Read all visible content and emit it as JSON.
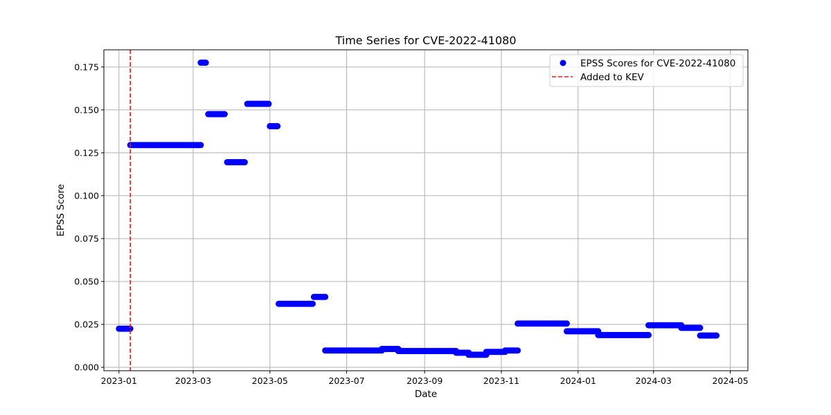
{
  "chart_data": {
    "type": "scatter",
    "title": "Time Series for CVE-2022-41080",
    "xlabel": "Date",
    "ylabel": "EPSS Score",
    "xlim": [
      "2022-12-20",
      "2024-05-15"
    ],
    "ylim": [
      -0.002,
      0.185
    ],
    "grid": true,
    "legend_position": "top-right",
    "x_ticks": [
      "2023-01",
      "2023-03",
      "2023-05",
      "2023-07",
      "2023-09",
      "2023-11",
      "2024-01",
      "2024-03",
      "2024-05"
    ],
    "y_ticks": [
      "0.000",
      "0.025",
      "0.050",
      "0.075",
      "0.100",
      "0.125",
      "0.150",
      "0.175"
    ],
    "series": [
      {
        "name": "EPSS Scores for CVE-2022-41080",
        "color": "#0000ff",
        "marker": "circle",
        "segments": [
          {
            "start": "2023-01-01",
            "end": "2023-01-10",
            "value": 0.0225
          },
          {
            "start": "2023-01-10",
            "end": "2023-03-07",
            "value": 0.1295
          },
          {
            "start": "2023-03-07",
            "end": "2023-03-11",
            "value": 0.1775
          },
          {
            "start": "2023-03-13",
            "end": "2023-03-26",
            "value": 0.1475
          },
          {
            "start": "2023-03-28",
            "end": "2023-04-11",
            "value": 0.1195
          },
          {
            "start": "2023-04-13",
            "end": "2023-04-30",
            "value": 0.1535
          },
          {
            "start": "2023-05-01",
            "end": "2023-05-07",
            "value": 0.1405
          },
          {
            "start": "2023-05-08",
            "end": "2023-06-04",
            "value": 0.037
          },
          {
            "start": "2023-06-05",
            "end": "2023-06-14",
            "value": 0.041
          },
          {
            "start": "2023-06-14",
            "end": "2023-07-29",
            "value": 0.0098
          },
          {
            "start": "2023-07-29",
            "end": "2023-08-11",
            "value": 0.0107
          },
          {
            "start": "2023-08-11",
            "end": "2023-09-26",
            "value": 0.0095
          },
          {
            "start": "2023-09-26",
            "end": "2023-10-06",
            "value": 0.0085
          },
          {
            "start": "2023-10-06",
            "end": "2023-10-20",
            "value": 0.0073
          },
          {
            "start": "2023-10-20",
            "end": "2023-11-04",
            "value": 0.009
          },
          {
            "start": "2023-11-04",
            "end": "2023-11-14",
            "value": 0.0098
          },
          {
            "start": "2023-11-14",
            "end": "2023-12-23",
            "value": 0.0255
          },
          {
            "start": "2023-12-23",
            "end": "2024-01-17",
            "value": 0.021
          },
          {
            "start": "2024-01-17",
            "end": "2024-02-26",
            "value": 0.0188
          },
          {
            "start": "2024-02-26",
            "end": "2024-03-23",
            "value": 0.0245
          },
          {
            "start": "2024-03-23",
            "end": "2024-04-07",
            "value": 0.023
          },
          {
            "start": "2024-04-07",
            "end": "2024-04-20",
            "value": 0.0185
          }
        ]
      }
    ],
    "vlines": [
      {
        "name": "Added to KEV",
        "x": "2023-01-10",
        "color": "#e41a1c",
        "style": "dashed"
      }
    ]
  }
}
